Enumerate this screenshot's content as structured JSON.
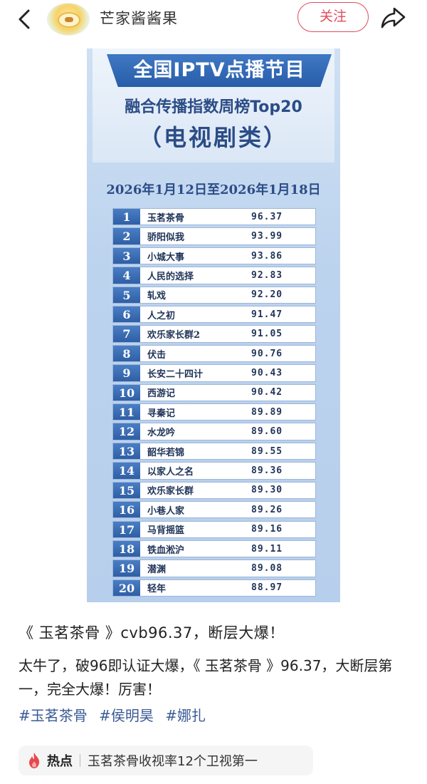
{
  "header": {
    "author_name": "芒家酱酱果",
    "follow_label": "关注"
  },
  "poster": {
    "banner": "全国IPTV点播节目",
    "subtitle": "融合传播指数周榜Top20",
    "category": "（电视剧类）",
    "date_range": "2026年1月12日至2026年1月18日",
    "ranks": [
      {
        "rank": "1",
        "title": "玉茗茶骨",
        "score": "96.37"
      },
      {
        "rank": "2",
        "title": "骄阳似我",
        "score": "93.99"
      },
      {
        "rank": "3",
        "title": "小城大事",
        "score": "93.86"
      },
      {
        "rank": "4",
        "title": "人民的选择",
        "score": "92.83"
      },
      {
        "rank": "5",
        "title": "轧戏",
        "score": "92.20"
      },
      {
        "rank": "6",
        "title": "人之初",
        "score": "91.47"
      },
      {
        "rank": "7",
        "title": "欢乐家长群2",
        "score": "91.05"
      },
      {
        "rank": "8",
        "title": "伏击",
        "score": "90.76"
      },
      {
        "rank": "9",
        "title": "长安二十四计",
        "score": "90.43"
      },
      {
        "rank": "10",
        "title": "西游记",
        "score": "90.42"
      },
      {
        "rank": "11",
        "title": "寻秦记",
        "score": "89.89"
      },
      {
        "rank": "12",
        "title": "水龙吟",
        "score": "89.60"
      },
      {
        "rank": "13",
        "title": "韶华若锦",
        "score": "89.55"
      },
      {
        "rank": "14",
        "title": "以家人之名",
        "score": "89.36"
      },
      {
        "rank": "15",
        "title": "欢乐家长群",
        "score": "89.30"
      },
      {
        "rank": "16",
        "title": "小巷人家",
        "score": "89.26"
      },
      {
        "rank": "17",
        "title": "马背摇篮",
        "score": "89.16"
      },
      {
        "rank": "18",
        "title": "铁血淞沪",
        "score": "89.11"
      },
      {
        "rank": "19",
        "title": "潜渊",
        "score": "89.08"
      },
      {
        "rank": "20",
        "title": "轻年",
        "score": "88.97"
      }
    ]
  },
  "post": {
    "title": "《 玉茗茶骨 》cvb96.37，断层大爆！",
    "body": "太牛了，破96即认证大爆，《 玉茗茶骨 》96.37，大断层第一，完全大爆！厉害！",
    "hashtags": [
      "#玉茗茶骨",
      "#侯明昊",
      "#娜扎"
    ]
  },
  "hot": {
    "label": "热点",
    "text": "玉茗茶骨收视率12个卫视第一"
  },
  "colors": {
    "accent": "#e24a5a",
    "hashtag": "#3a5a96",
    "poster_blue": "#2f5fa5"
  },
  "icons": [
    "chevron-left-icon",
    "share-arrow-icon",
    "fire-icon"
  ]
}
